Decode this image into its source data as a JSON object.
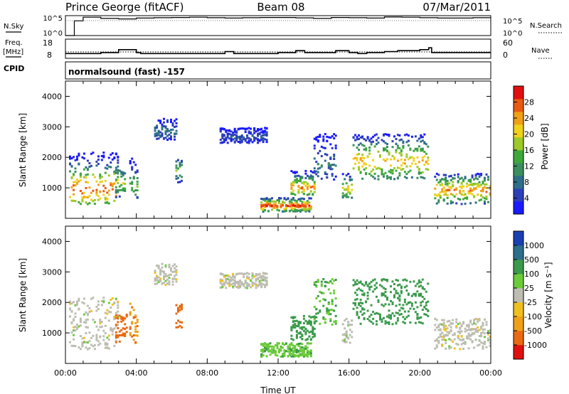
{
  "header": {
    "station": "Prince George (fitACF)",
    "beam": "Beam 08",
    "date": "07/Mar/2011"
  },
  "panel_labels": {
    "nsky": "N.Sky",
    "nsky_hi": "10^5",
    "nsky_lo": "10^0",
    "nsearch": "N.Search",
    "nsearch_hi": "10^5",
    "nsearch_lo": "10^0",
    "freq": "Freq.",
    "freq_unit": "[MHz]",
    "freq_hi": "18",
    "freq_lo": "8",
    "nave": "Nave",
    "nave_hi": "60",
    "nave_lo": "0",
    "cpid": "CPID",
    "cpid_text": "normalsound (fast) -157"
  },
  "chart_data": [
    {
      "type": "line",
      "name": "N.Sky / N.Search",
      "x": [
        "00:00",
        "00:30",
        "01:00",
        "02:00",
        "03:00",
        "04:00",
        "05:00",
        "06:00",
        "07:00",
        "08:00",
        "09:00",
        "10:00",
        "11:00",
        "12:00",
        "13:00",
        "14:00",
        "15:00",
        "16:00",
        "17:00",
        "18:00",
        "19:00",
        "20:00",
        "21:00",
        "22:00",
        "23:00",
        "24:00"
      ],
      "series": [
        {
          "values": [
            1,
            5000,
            40000,
            20000,
            15000,
            25000,
            30000,
            35000,
            40000,
            30000,
            25000,
            30000,
            35000,
            35000,
            28000,
            20000,
            35000,
            30000,
            25000,
            45000,
            40000,
            30000,
            25000,
            25000,
            30000,
            30000
          ]
        }
      ],
      "ylim": [
        1,
        100000
      ]
    },
    {
      "type": "line",
      "name": "Freq / Nave",
      "x": [
        "00:00",
        "00:30",
        "01:30",
        "02:00",
        "03:00",
        "03:50",
        "04:00",
        "04:15",
        "09:00",
        "09:30",
        "12:00",
        "13:00",
        "13:30",
        "15:15",
        "16:00",
        "16:30",
        "17:00",
        "18:00",
        "18:45",
        "20:00",
        "20:30",
        "20:40",
        "21:00",
        "24:00"
      ],
      "series": [
        {
          "values": [
            10.5,
            10.5,
            10.5,
            11.0,
            12.5,
            12.5,
            11.0,
            10.5,
            11.5,
            10.5,
            11.0,
            12.0,
            11.0,
            12.0,
            11.0,
            10.5,
            11.0,
            11.5,
            12.0,
            12.5,
            13.5,
            11.0,
            11.0,
            11.0
          ]
        },
        {
          "values": [
            20,
            20,
            20,
            20,
            20,
            20,
            20,
            20,
            20,
            20,
            20,
            20,
            20,
            20,
            20,
            20,
            20,
            20,
            20,
            20,
            20,
            20,
            20,
            20
          ]
        }
      ],
      "ylim": [
        8,
        18
      ]
    },
    {
      "type": "heatmap",
      "name": "Power",
      "xlabel": "",
      "ylabel": "Slant Range [km]",
      "yticks": [
        "1000",
        "2000",
        "3000",
        "4000"
      ],
      "ylim": [
        0,
        4500
      ],
      "xlim": [
        "00:00",
        "24:00"
      ],
      "colorbar": {
        "label": "Power [dB]",
        "ticks": [
          "4",
          "8",
          "12",
          "16",
          "20",
          "24",
          "28"
        ],
        "range": [
          0,
          30
        ]
      },
      "blobs": [
        {
          "t0": 0.2,
          "t1": 3.0,
          "r0": 500,
          "r1": 2200,
          "peak": 26,
          "rc": 1000
        },
        {
          "t0": 2.8,
          "t1": 3.4,
          "r0": 700,
          "r1": 1700,
          "peak": 18,
          "rc": 1200
        },
        {
          "t0": 3.6,
          "t1": 4.1,
          "r0": 700,
          "r1": 2000,
          "peak": 14,
          "rc": 1100
        },
        {
          "t0": 5.0,
          "t1": 6.2,
          "r0": 2600,
          "r1": 3300,
          "peak": 8,
          "rc": 2900
        },
        {
          "t0": 6.2,
          "t1": 6.5,
          "r0": 1200,
          "r1": 2000,
          "peak": 16,
          "rc": 1600
        },
        {
          "t0": 8.7,
          "t1": 11.3,
          "r0": 2500,
          "r1": 3000,
          "peak": 6,
          "rc": 2700
        },
        {
          "t0": 11.0,
          "t1": 13.8,
          "r0": 250,
          "r1": 700,
          "peak": 28,
          "rc": 450
        },
        {
          "t0": 12.7,
          "t1": 14.0,
          "r0": 800,
          "r1": 1600,
          "peak": 24,
          "rc": 1050
        },
        {
          "t0": 14.0,
          "t1": 15.2,
          "r0": 1300,
          "r1": 2800,
          "peak": 8,
          "rc": 1800
        },
        {
          "t0": 15.6,
          "t1": 16.2,
          "r0": 700,
          "r1": 1500,
          "peak": 20,
          "rc": 1000
        },
        {
          "t0": 16.2,
          "t1": 20.5,
          "r0": 1300,
          "r1": 2800,
          "peak": 22,
          "rc": 1900
        },
        {
          "t0": 20.8,
          "t1": 24.0,
          "r0": 500,
          "r1": 1500,
          "peak": 24,
          "rc": 950
        }
      ]
    },
    {
      "type": "heatmap",
      "name": "Velocity",
      "xlabel": "Time UT",
      "ylabel": "Slant Range [km]",
      "xticks": [
        "00:00",
        "04:00",
        "08:00",
        "12:00",
        "16:00",
        "20:00",
        "00:00"
      ],
      "yticks": [
        "1000",
        "2000",
        "3000",
        "4000"
      ],
      "ylim": [
        0,
        4500
      ],
      "xlim": [
        "00:00",
        "24:00"
      ],
      "colorbar": {
        "label": "Velocity [m s⁻¹]",
        "ticks": [
          "1000",
          "500",
          "100",
          "25",
          "-25",
          "-100",
          "-500",
          "-1000"
        ],
        "range": [
          -1000,
          1000
        ]
      },
      "blobs": [
        {
          "t0": 0.2,
          "t1": 3.0,
          "r0": 500,
          "r1": 2200,
          "vel": 0,
          "rc": 1000
        },
        {
          "t0": 2.8,
          "t1": 3.5,
          "r0": 700,
          "r1": 1700,
          "vel": -400,
          "rc": 1200
        },
        {
          "t0": 3.6,
          "t1": 4.1,
          "r0": 700,
          "r1": 2000,
          "vel": -300,
          "rc": 1100
        },
        {
          "t0": 5.0,
          "t1": 6.2,
          "r0": 2600,
          "r1": 3300,
          "vel": 0,
          "rc": 2900
        },
        {
          "t0": 6.2,
          "t1": 6.5,
          "r0": 1200,
          "r1": 2000,
          "vel": -400,
          "rc": 1600
        },
        {
          "t0": 8.7,
          "t1": 11.3,
          "r0": 2500,
          "r1": 3000,
          "vel": 0,
          "rc": 2700
        },
        {
          "t0": 11.0,
          "t1": 13.8,
          "r0": 250,
          "r1": 700,
          "vel": 80,
          "rc": 450
        },
        {
          "t0": 12.7,
          "t1": 14.0,
          "r0": 800,
          "r1": 1600,
          "vel": 250,
          "rc": 1050
        },
        {
          "t0": 14.0,
          "t1": 15.2,
          "r0": 1300,
          "r1": 2800,
          "vel": 100,
          "rc": 1800
        },
        {
          "t0": 15.6,
          "t1": 16.2,
          "r0": 700,
          "r1": 1500,
          "vel": 0,
          "rc": 1000
        },
        {
          "t0": 16.2,
          "t1": 20.5,
          "r0": 1300,
          "r1": 2800,
          "vel": 200,
          "rc": 1900
        },
        {
          "t0": 20.8,
          "t1": 24.0,
          "r0": 500,
          "r1": 1500,
          "vel": 0,
          "rc": 950
        }
      ]
    }
  ]
}
